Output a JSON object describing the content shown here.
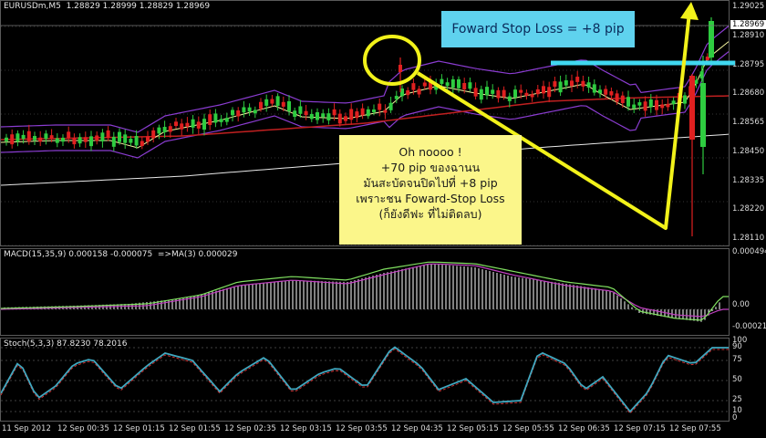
{
  "main_chart": {
    "title": "EURUSDm,M5  1.28829 1.28999 1.28829 1.28969",
    "price_labels": [
      "1.29025",
      "1.28910",
      "1.28795",
      "1.28680",
      "1.28565",
      "1.28450",
      "1.28335",
      "1.28220",
      "1.28110"
    ],
    "current_price": "1.28969"
  },
  "macd": {
    "title": "MACD(15,35,9) 0.000158 -0.000075  =>MA(3) 0.000029",
    "labels": [
      "0.000494",
      "0.00",
      "-0.00021"
    ]
  },
  "stoch": {
    "title": "Stoch(5,3,3) 87.8230 78.2016",
    "labels": [
      "100",
      "90",
      "75",
      "50",
      "25",
      "10",
      "0"
    ]
  },
  "time_axis": [
    "11 Sep 2012",
    "12 Sep 00:35",
    "12 Sep 01:15",
    "12 Sep 01:55",
    "12 Sep 02:35",
    "12 Sep 03:15",
    "12 Sep 03:55",
    "12 Sep 04:35",
    "12 Sep 05:15",
    "12 Sep 05:55",
    "12 Sep 06:35",
    "12 Sep 07:15",
    "12 Sep 07:55"
  ],
  "annotations": {
    "forward_stop": "Foward Stop Loss = +8 pip",
    "oh_lines": [
      "Oh noooo !",
      "+70 pip ของฉานน",
      "มันสะบัดจนปิดไปที่ +8 pip",
      "เพราะชน Foward-Stop Loss",
      "(ก็ยังดีฟะ ที่ไม่ติดลบ)"
    ]
  },
  "colors": {
    "bull_candle": "#2ecc40",
    "bear_candle": "#e02020",
    "bollinger": "#8a3cd0",
    "ma_fast": "#f5f5a0",
    "ma_slow": "#c02020",
    "ma_long": "#e8e8e8",
    "macd_hist": "#ffffff",
    "macd_signal": "#c040c0",
    "macd_ma": "#80e060",
    "stoch_main": "#40a8c0",
    "stoch_signal": "#d03030",
    "arrow": "#f2f21a",
    "stop_line": "#40d8f0"
  }
}
